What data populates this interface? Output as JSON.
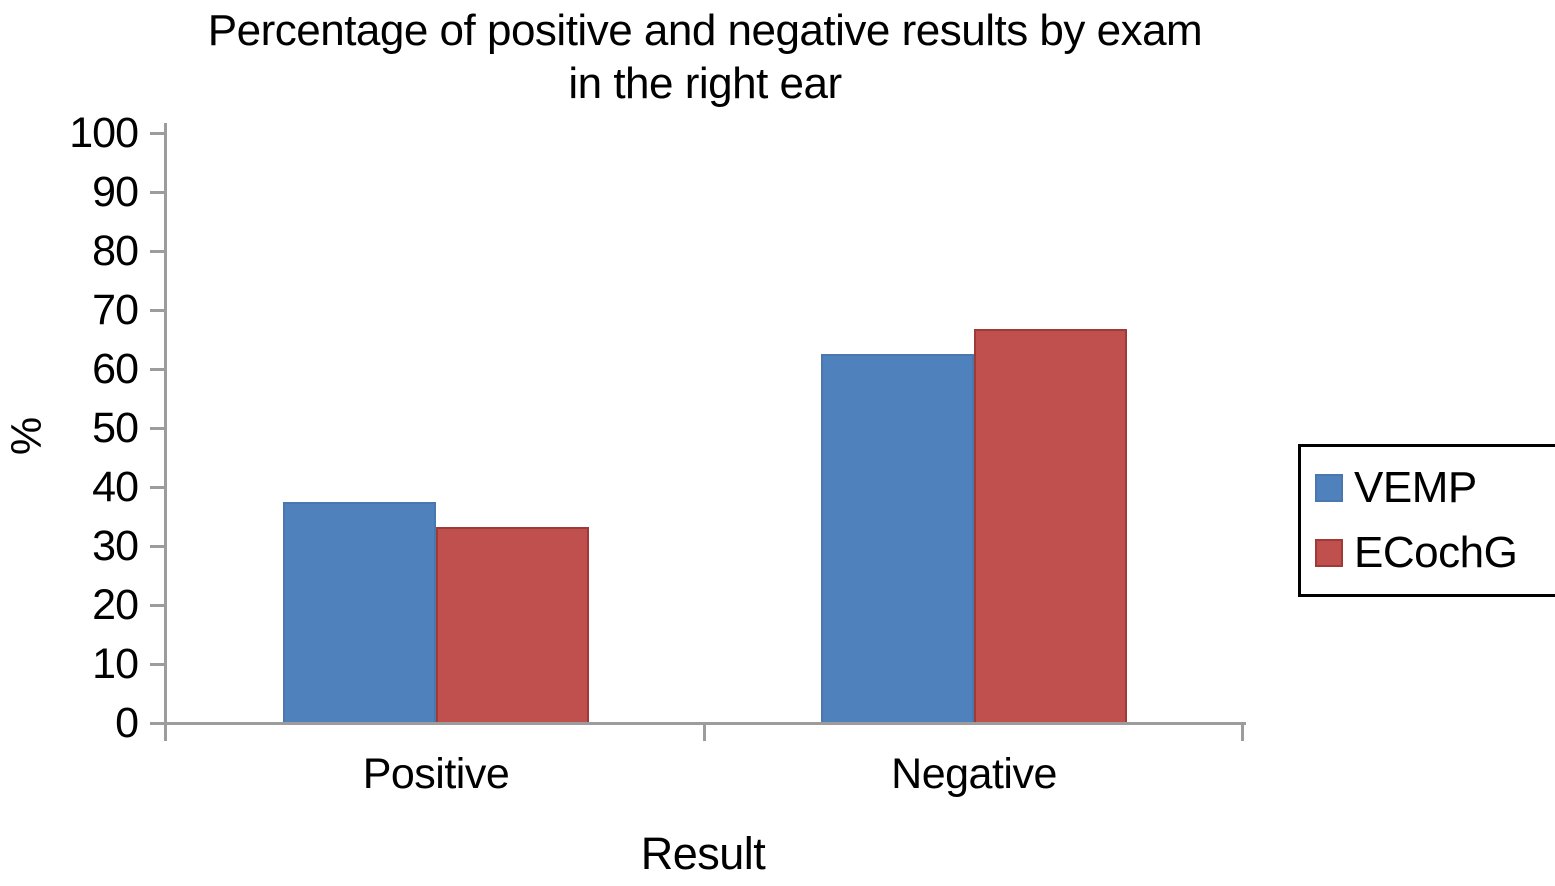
{
  "chart_data": {
    "type": "bar",
    "title": "Percentage of positive and negative results by exam in the right ear",
    "title_lines": [
      "Percentage of positive and negative results by exam",
      "in the right ear"
    ],
    "xlabel": "Result",
    "ylabel": "%",
    "categories": [
      "Positive",
      "Negative"
    ],
    "series": [
      {
        "name": "VEMP",
        "color": "#4f81bd",
        "border_color": "#4a77ae",
        "values": [
          37.5,
          62.5
        ]
      },
      {
        "name": "ECochG",
        "color": "#c0504d",
        "border_color": "#9e3b38",
        "values": [
          33.3,
          66.7
        ]
      }
    ],
    "ylim": [
      0,
      100
    ],
    "ytick_step": 10,
    "yticks": [
      0,
      10,
      20,
      30,
      40,
      50,
      60,
      70,
      80,
      90,
      100
    ],
    "grid": false,
    "legend_position": "right",
    "axis_color": "#9c9c9c",
    "text_color": "#000000",
    "background": "#ffffff"
  }
}
